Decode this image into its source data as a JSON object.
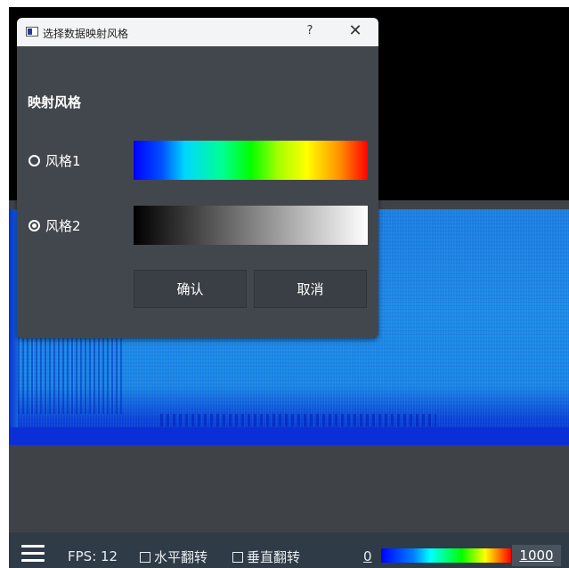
{
  "dialog": {
    "title": "选择数据映射风格",
    "help_label": "?",
    "close_label": "✕",
    "section_label": "映射风格",
    "styles": [
      {
        "label": "风格1",
        "checked": false,
        "gradient": "rainbow"
      },
      {
        "label": "风格2",
        "checked": true,
        "gradient": "grayscale"
      }
    ],
    "confirm_label": "确认",
    "cancel_label": "取消"
  },
  "toolbar": {
    "menu_icon": "hamburger-menu-icon",
    "fps_text": "FPS: 12",
    "flip_horizontal_label": "水平翻转",
    "flip_vertical_label": "垂直翻转",
    "range_min": "0",
    "range_max": "1000"
  },
  "colors": {
    "dialog_bg": "#42474d",
    "toolbar_bg": "#2f3b47",
    "heatmap_blue": "#1a86e6"
  }
}
